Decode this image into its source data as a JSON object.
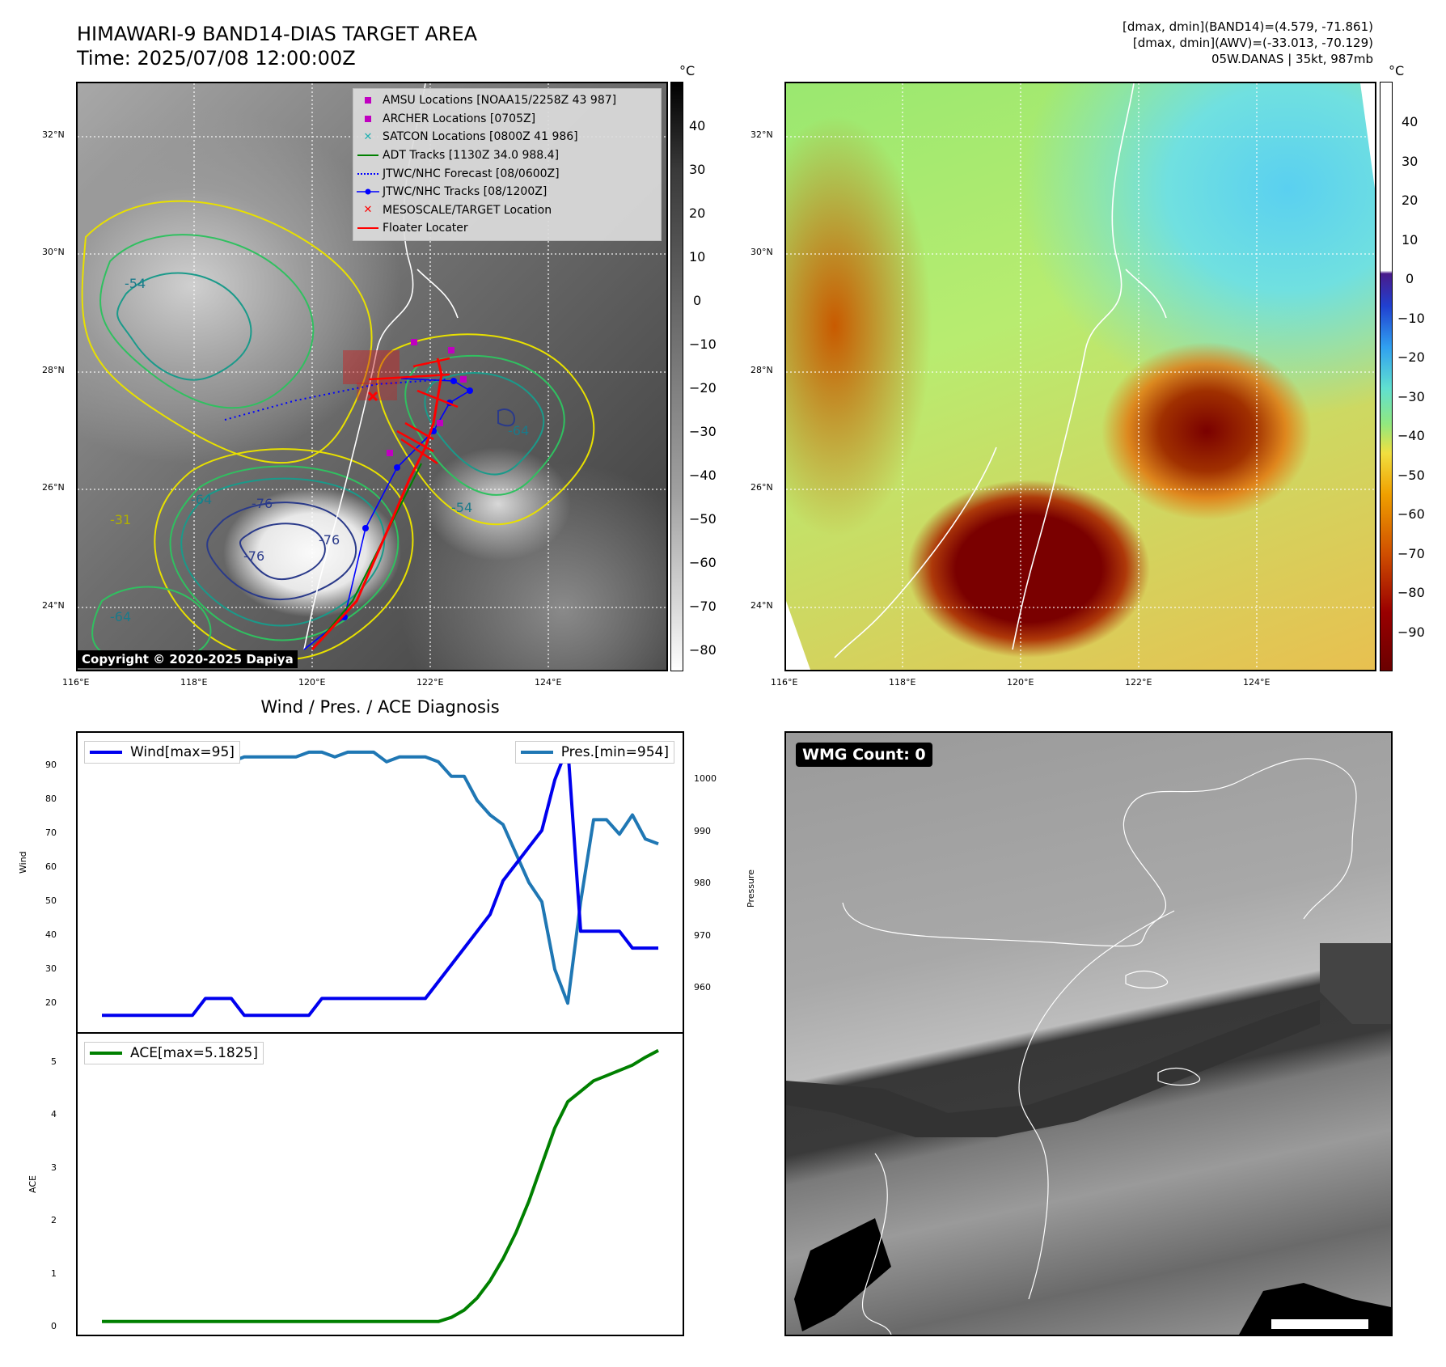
{
  "header": {
    "title_line1": "HIMAWARI-9 BAND14-DIAS TARGET AREA",
    "title_line2": "Time: 2025/07/08 12:00:00Z",
    "info_line1": "[dmax, dmin](BAND14)=(4.579, -71.861)",
    "info_line2": "[dmax, dmin](AWV)=(-33.013, -70.129)",
    "info_line3": "05W.DANAS | 35kt, 987mb"
  },
  "map": {
    "lon_ticks": [
      "116°E",
      "118°E",
      "120°E",
      "122°E",
      "124°E"
    ],
    "lat_ticks": [
      "32°N",
      "30°N",
      "28°N",
      "26°N",
      "24°N"
    ],
    "contour_labels": [
      "-54",
      "-64",
      "-76",
      "-76",
      "-64",
      "-64",
      "-31",
      "-54",
      "-47",
      "-76"
    ],
    "copyright": "Copyright © 2020-2025 Dapiya",
    "legend": [
      {
        "label": "AMSU Locations [NOAA15/2258Z 43 987]",
        "symbol": "square",
        "color": "#c000c0"
      },
      {
        "label": "ARCHER Locations [0705Z]",
        "symbol": "square",
        "color": "#c000c0"
      },
      {
        "label": "SATCON Locations [0800Z 41 986]",
        "symbol": "x",
        "color": "#20b0b0"
      },
      {
        "label": "ADT Tracks [1130Z 34.0 988.4]",
        "symbol": "line",
        "color": "#008000"
      },
      {
        "label": "JTWC/NHC Forecast [08/0600Z]",
        "symbol": "dotted",
        "color": "#0000ff"
      },
      {
        "label": "JTWC/NHC Tracks [08/1200Z]",
        "symbol": "dotline",
        "color": "#0000ff"
      },
      {
        "label": "MESOSCALE/TARGET Location",
        "symbol": "x",
        "color": "#ff0000"
      },
      {
        "label": "Floater Locater",
        "symbol": "line",
        "color": "#ff0000"
      }
    ]
  },
  "colorbar_ir": {
    "unit": "°C",
    "ticks": [
      "40",
      "30",
      "20",
      "10",
      "0",
      "−10",
      "−20",
      "−30",
      "−40",
      "−50",
      "−60",
      "−70",
      "−80"
    ]
  },
  "colorbar_bd": {
    "unit": "°C",
    "ticks": [
      "40",
      "30",
      "20",
      "10",
      "0",
      "−10",
      "−20",
      "−30",
      "−40",
      "−50",
      "−60",
      "−70",
      "−80",
      "−90"
    ]
  },
  "diagnosis": {
    "title": "Wind / Pres. / ACE Diagnosis",
    "wind_ylabel": "Wind",
    "pres_ylabel": "Pressure",
    "ace_ylabel": "ACE",
    "wind_legend": "Wind[max=95]",
    "pres_legend": "Pres.[min=954]",
    "ace_legend": "ACE[max=5.1825]",
    "colors": {
      "wind": "#0000ee",
      "pres": "#1f77b4",
      "ace": "#008000"
    }
  },
  "wmg": {
    "badge": "WMG Count: 0"
  },
  "chart_data": [
    {
      "type": "line",
      "title": "Wind / Pres. / ACE Diagnosis",
      "ylabel": "Wind",
      "y2label": "Pressure",
      "ylim": [
        10,
        99
      ],
      "y2lim": [
        948,
        1010
      ],
      "yticks": [
        "20",
        "30",
        "40",
        "50",
        "60",
        "70",
        "80",
        "90"
      ],
      "y2ticks": [
        "960",
        "970",
        "980",
        "990",
        "1000"
      ],
      "series": [
        {
          "name": "Wind[max=95]",
          "axis": "left",
          "values": [
            15,
            15,
            15,
            15,
            15,
            15,
            15,
            15,
            20,
            20,
            20,
            15,
            15,
            15,
            15,
            15,
            15,
            20,
            20,
            20,
            20,
            20,
            20,
            20,
            20,
            20,
            25,
            30,
            35,
            40,
            45,
            55,
            60,
            65,
            70,
            85,
            95,
            40,
            40,
            40,
            40,
            35,
            35,
            35
          ]
        },
        {
          "name": "Pres.[min=954]",
          "axis": "right",
          "values": [
            1007,
            1007,
            1007,
            1007,
            1007,
            1004,
            1004,
            1004,
            1004,
            1004,
            1004,
            1005,
            1005,
            1005,
            1005,
            1005,
            1006,
            1006,
            1005,
            1006,
            1006,
            1006,
            1004,
            1005,
            1005,
            1005,
            1004,
            1001,
            1001,
            996,
            993,
            991,
            985,
            979,
            975,
            961,
            954,
            975,
            992,
            992,
            989,
            993,
            988,
            987
          ]
        }
      ]
    },
    {
      "type": "line",
      "ylabel": "ACE",
      "ylim": [
        -0.25,
        5.5
      ],
      "yticks": [
        "0",
        "1",
        "2",
        "3",
        "4",
        "5"
      ],
      "series": [
        {
          "name": "ACE[max=5.1825]",
          "values": [
            0,
            0,
            0,
            0,
            0,
            0,
            0,
            0,
            0,
            0,
            0,
            0,
            0,
            0,
            0,
            0,
            0,
            0,
            0,
            0,
            0,
            0,
            0,
            0,
            0,
            0,
            0,
            0.08,
            0.22,
            0.45,
            0.78,
            1.2,
            1.7,
            2.3,
            3.0,
            3.7,
            4.2,
            4.4,
            4.6,
            4.7,
            4.8,
            4.9,
            5.05,
            5.18
          ]
        }
      ]
    }
  ]
}
